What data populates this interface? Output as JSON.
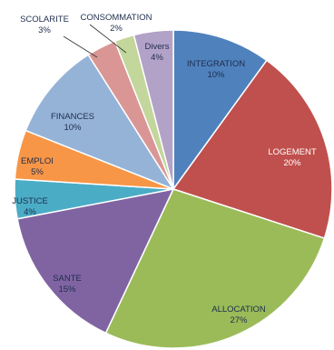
{
  "chart_data": {
    "type": "pie",
    "title": "",
    "slices": [
      {
        "label": "INTEGRATION",
        "value": 10,
        "display": "10%",
        "color": "#4f81bd"
      },
      {
        "label": "LOGEMENT",
        "value": 20,
        "display": "20%",
        "color": "#c0504d"
      },
      {
        "label": "ALLOCATION",
        "value": 27,
        "display": "27%",
        "color": "#9bbb59"
      },
      {
        "label": "SANTE",
        "value": 15,
        "display": "15%",
        "color": "#8064a2"
      },
      {
        "label": "JUSTICE",
        "value": 4,
        "display": "4%",
        "color": "#4bacc6"
      },
      {
        "label": "EMPLOI",
        "value": 5,
        "display": "5%",
        "color": "#f79646"
      },
      {
        "label": "FINANCES",
        "value": 10,
        "display": "10%",
        "color": "#95b3d7"
      },
      {
        "label": "SCOLARITE",
        "value": 3,
        "display": "3%",
        "color": "#d99694"
      },
      {
        "label": "CONSOMMATION",
        "value": 2,
        "display": "2%",
        "color": "#c3d69b"
      },
      {
        "label": "Divers",
        "value": 4,
        "display": "4%",
        "color": "#b2a2c7"
      }
    ]
  }
}
